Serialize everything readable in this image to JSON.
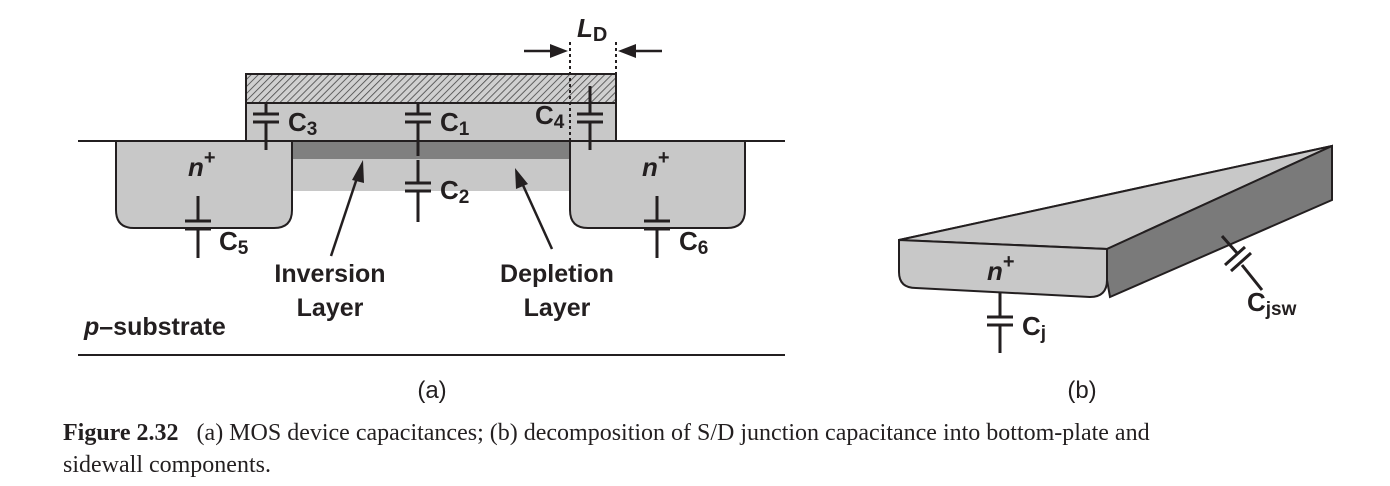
{
  "diagram_a": {
    "ld_label": "L",
    "ld_sub": "D",
    "caps": [
      {
        "main": "C",
        "sub": "1"
      },
      {
        "main": "C",
        "sub": "2"
      },
      {
        "main": "C",
        "sub": "3"
      },
      {
        "main": "C",
        "sub": "4"
      },
      {
        "main": "C",
        "sub": "5"
      },
      {
        "main": "C",
        "sub": "6"
      }
    ],
    "n_plus_main": "n",
    "n_plus_sup": "+",
    "inversion_line1": "Inversion",
    "inversion_line2": "Layer",
    "depletion_line1": "Depletion",
    "depletion_line2": "Layer",
    "substrate_italic": "p",
    "substrate_rest": "–substrate",
    "panel_label": "(a)"
  },
  "diagram_b": {
    "n_plus_main": "n",
    "n_plus_sup": "+",
    "cj_main": "C",
    "cj_sub": "j",
    "cjsw_main": "C",
    "cjsw_sub": "jsw",
    "panel_label": "(b)"
  },
  "caption": {
    "label": "Figure 2.32",
    "text_line1": "(a) MOS device capacitances; (b) decomposition of S/D junction capacitance into bottom-plate and",
    "text_line2": "sidewall components."
  },
  "colors": {
    "gray_light": "#c8c8c8",
    "gray_dark": "#808080",
    "gray_side": "#7a7a7a",
    "ink": "#231f20"
  }
}
